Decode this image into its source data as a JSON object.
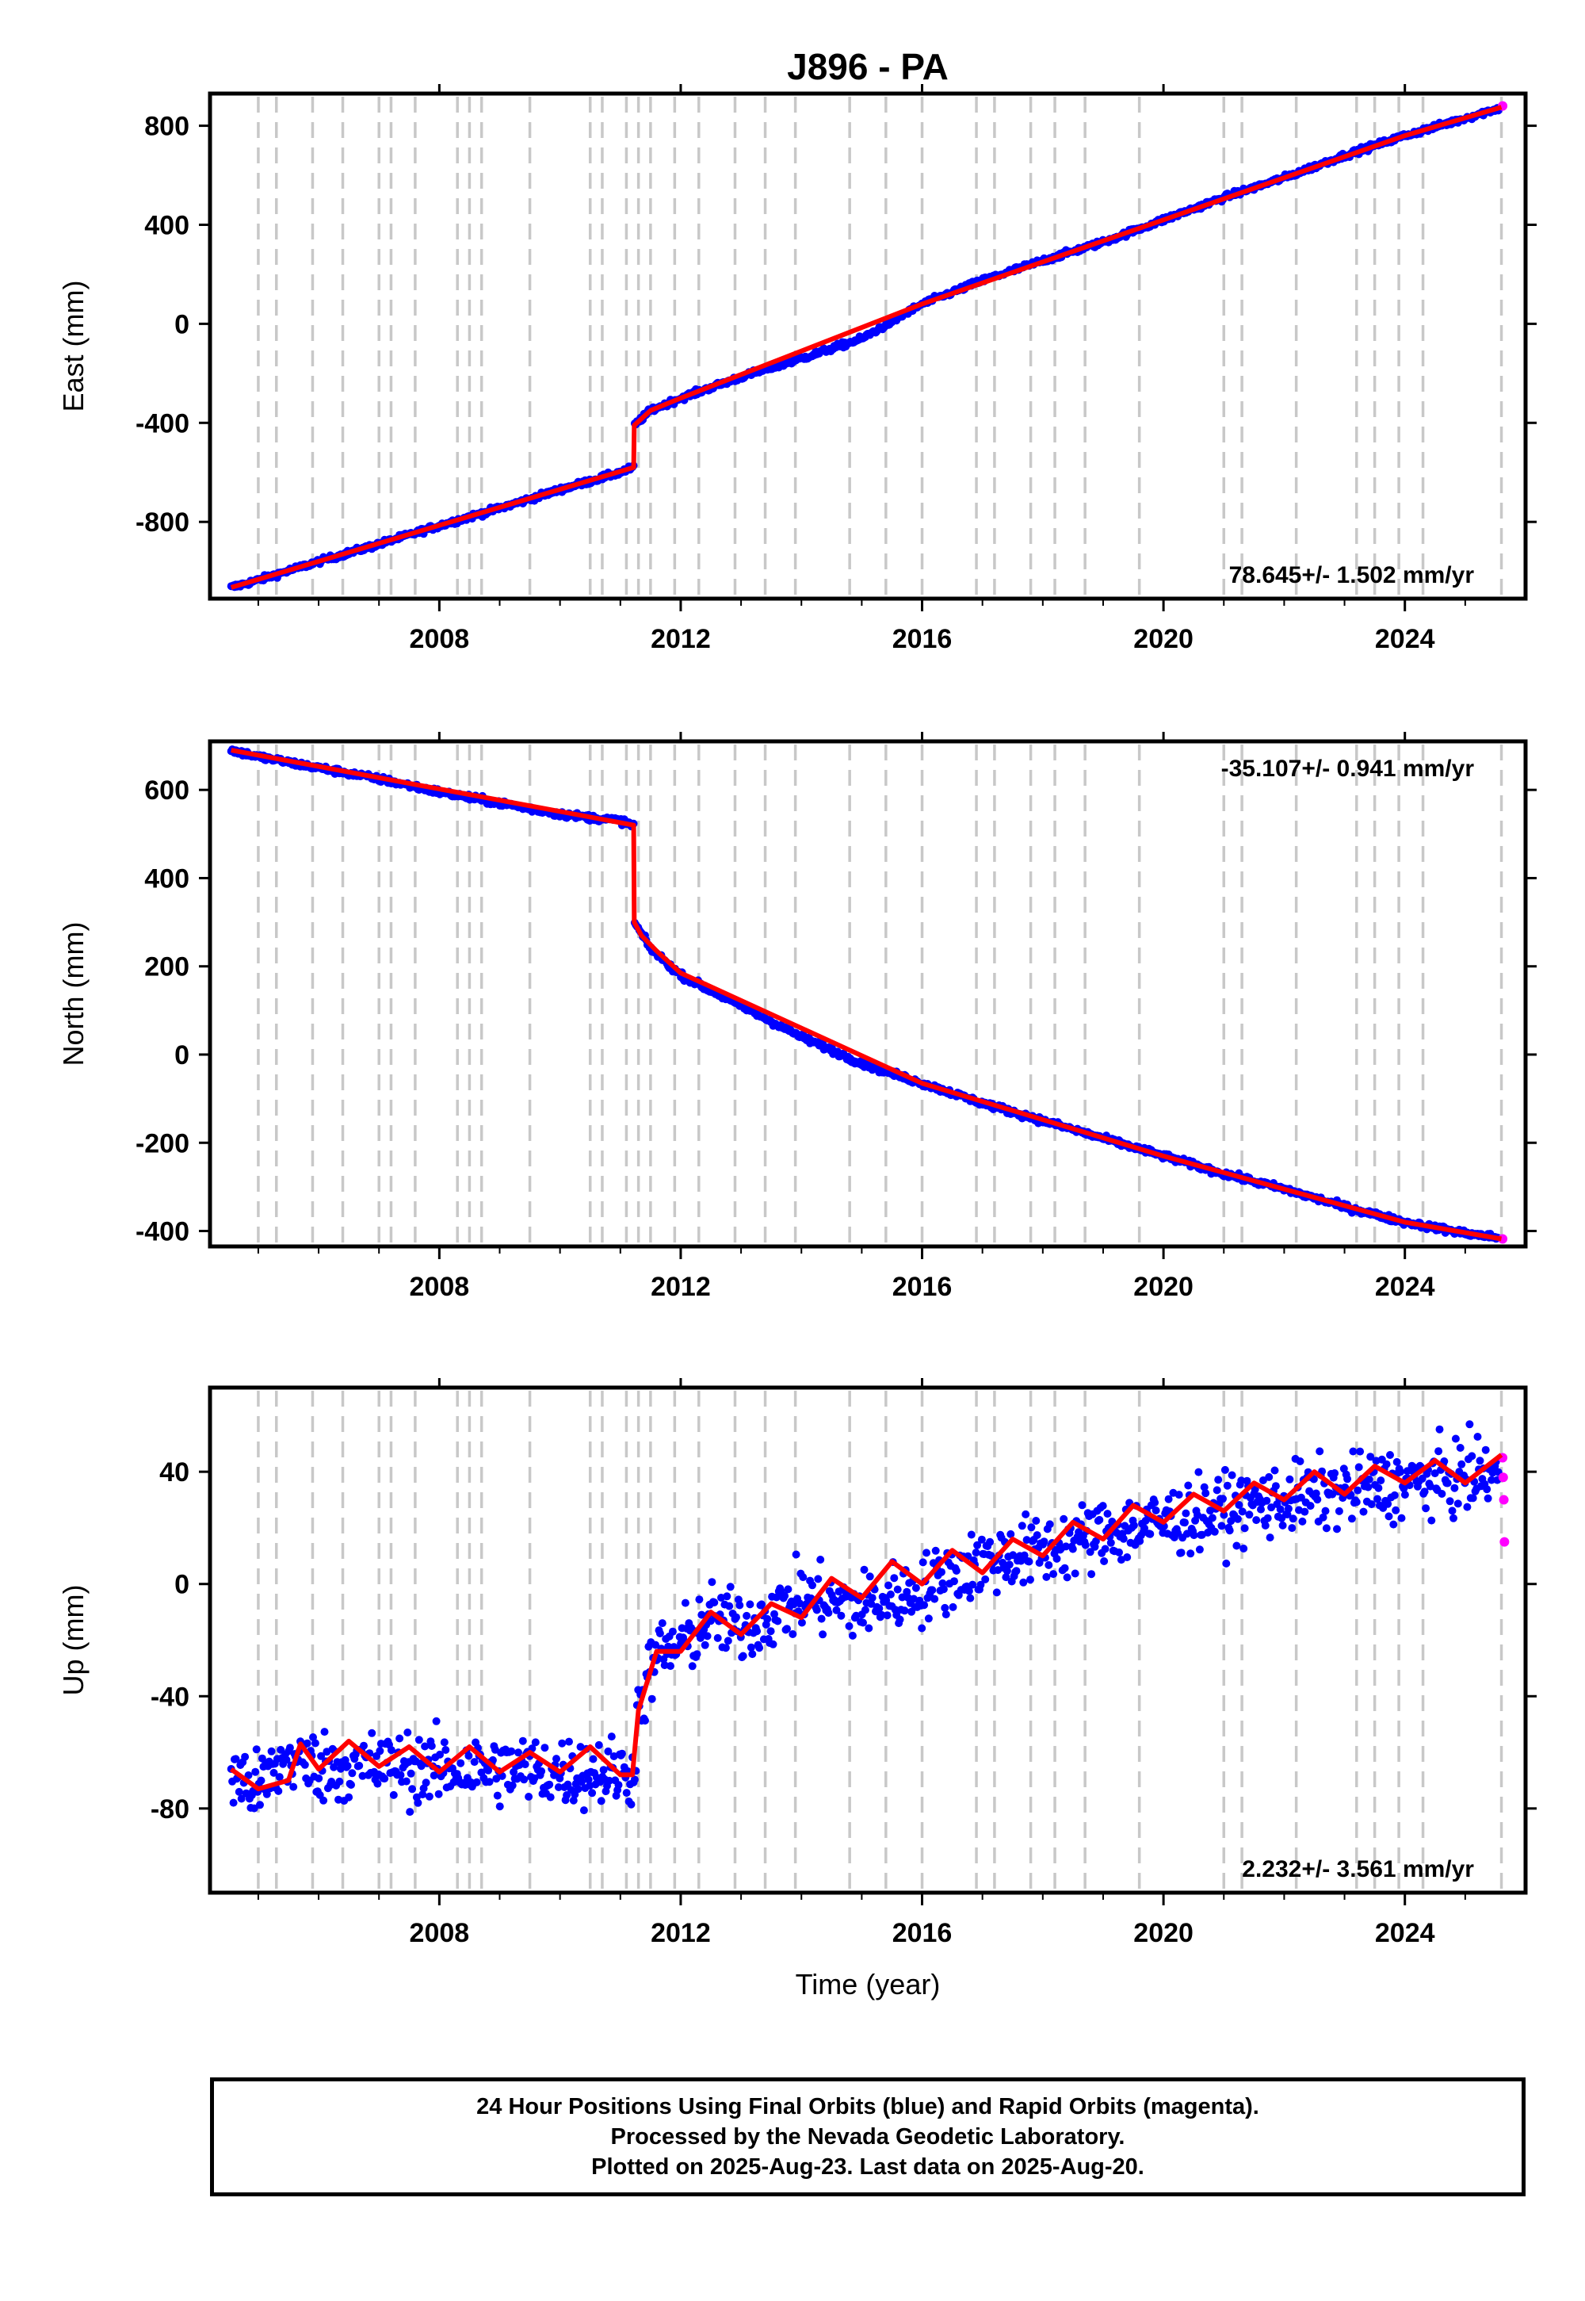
{
  "chart_data": [
    {
      "type": "scatter",
      "title": "J896 - PA",
      "ylabel": "East (mm)",
      "xlabel": "",
      "xlim": [
        2004.2,
        2026.0
      ],
      "ylim": [
        -1110,
        930
      ],
      "xticks": [
        2008,
        2012,
        2016,
        2020,
        2024
      ],
      "yticks": [
        -800,
        -400,
        0,
        400,
        800
      ],
      "rate_label": "78.645+/- 1.502 mm/yr",
      "rate_position": "bottom-right",
      "grid": false,
      "equipment_change_lines": [
        2005.0,
        2005.3,
        2005.9,
        2006.4,
        2007.0,
        2007.2,
        2007.6,
        2008.3,
        2008.5,
        2008.7,
        2009.5,
        2010.5,
        2010.7,
        2011.1,
        2011.3,
        2011.5,
        2011.9,
        2012.3,
        2012.9,
        2013.4,
        2013.9,
        2014.8,
        2015.4,
        2016.0,
        2016.9,
        2017.2,
        2017.8,
        2018.2,
        2018.7,
        2019.6,
        2021.0,
        2021.3,
        2022.2,
        2023.2,
        2023.5,
        2023.9,
        2024.3,
        2025.6
      ],
      "series": [
        {
          "name": "Final Orbits",
          "color": "#0000ff",
          "x": [
            2004.55,
            2005.0,
            2006.0,
            2007.0,
            2008.0,
            2009.0,
            2010.0,
            2011.0,
            2011.22,
            2011.23,
            2011.5,
            2012.0,
            2013.0,
            2014.0,
            2015.0,
            2016.0,
            2017.0,
            2018.0,
            2019.0,
            2020.0,
            2021.0,
            2022.0,
            2023.0,
            2024.0,
            2025.0,
            2025.55
          ],
          "values": [
            -1065,
            -1035,
            -960,
            -890,
            -815,
            -745,
            -670,
            -600,
            -580,
            -410,
            -350,
            -300,
            -215,
            -140,
            -60,
            80,
            175,
            255,
            330,
            420,
            510,
            590,
            680,
            760,
            830,
            870
          ]
        },
        {
          "name": "Rapid Orbits",
          "color": "#ff00ff",
          "x": [
            2025.62
          ],
          "values": [
            880
          ]
        },
        {
          "name": "Model",
          "color": "#ff0000",
          "x": [
            2004.55,
            2011.22,
            2011.23,
            2011.5,
            2012.0,
            2016.0,
            2020.0,
            2024.0,
            2025.6
          ],
          "values": [
            -1065,
            -580,
            -410,
            -350,
            -300,
            80,
            420,
            760,
            875
          ]
        }
      ]
    },
    {
      "type": "scatter",
      "title": "",
      "ylabel": "North (mm)",
      "xlabel": "",
      "xlim": [
        2004.2,
        2026.0
      ],
      "ylim": [
        -435,
        710
      ],
      "xticks": [
        2008,
        2012,
        2016,
        2020,
        2024
      ],
      "yticks": [
        -400,
        -200,
        0,
        200,
        400,
        600
      ],
      "rate_label": "-35.107+/- 0.941 mm/yr",
      "rate_position": "top-right",
      "grid": false,
      "series": [
        {
          "name": "Final Orbits",
          "color": "#0000ff",
          "x": [
            2004.55,
            2005.0,
            2006.0,
            2007.0,
            2008.0,
            2009.0,
            2010.0,
            2011.0,
            2011.22,
            2011.23,
            2011.5,
            2012.0,
            2013.0,
            2014.0,
            2015.0,
            2016.0,
            2017.0,
            2018.0,
            2019.0,
            2020.0,
            2021.0,
            2022.0,
            2023.0,
            2024.0,
            2025.0,
            2025.55
          ],
          "values": [
            690,
            675,
            650,
            625,
            595,
            570,
            545,
            530,
            520,
            300,
            240,
            180,
            110,
            40,
            -20,
            -65,
            -110,
            -150,
            -190,
            -230,
            -270,
            -305,
            -345,
            -380,
            -405,
            -415
          ]
        },
        {
          "name": "Rapid Orbits",
          "color": "#ff00ff",
          "x": [
            2025.62
          ],
          "values": [
            -418
          ]
        },
        {
          "name": "Model",
          "color": "#ff0000",
          "x": [
            2004.55,
            2011.22,
            2011.23,
            2011.35,
            2011.6,
            2012.0,
            2016.0,
            2020.0,
            2024.0,
            2025.6
          ],
          "values": [
            690,
            520,
            300,
            270,
            235,
            185,
            -65,
            -230,
            -380,
            -418
          ]
        }
      ]
    },
    {
      "type": "scatter",
      "title": "",
      "ylabel": "Up (mm)",
      "xlabel": "Time (year)",
      "xlim": [
        2004.2,
        2026.0
      ],
      "ylim": [
        -110,
        70
      ],
      "xticks": [
        2008,
        2012,
        2016,
        2020,
        2024
      ],
      "yticks": [
        -80,
        -40,
        0,
        40
      ],
      "rate_label": "2.232+/- 3.561 mm/yr",
      "rate_position": "bottom-right",
      "grid": false,
      "series": [
        {
          "name": "Final Orbits",
          "color": "#0000ff",
          "x": [
            2004.55,
            2005.0,
            2005.5,
            2006.0,
            2007.0,
            2008.0,
            2009.0,
            2010.0,
            2011.0,
            2011.2,
            2011.3,
            2011.6,
            2012.0,
            2012.5,
            2013.0,
            2014.0,
            2015.0,
            2016.0,
            2017.0,
            2018.0,
            2019.0,
            2020.0,
            2021.0,
            2022.0,
            2023.0,
            2024.0,
            2025.0,
            2025.55
          ],
          "values": [
            -68,
            -73,
            -62,
            -65,
            -65,
            -66,
            -66,
            -67,
            -67,
            -68,
            -45,
            -25,
            -22,
            -12,
            -16,
            -5,
            -8,
            -2,
            8,
            12,
            18,
            22,
            26,
            30,
            33,
            36,
            38,
            40
          ]
        },
        {
          "name": "Rapid Orbits",
          "color": "#ff00ff",
          "x": [
            2025.62,
            2025.63,
            2025.64,
            2025.65
          ],
          "values": [
            45,
            38,
            30,
            15
          ]
        },
        {
          "name": "Model",
          "color": "#ff0000",
          "x": [
            2004.55,
            2005.0,
            2005.5,
            2005.7,
            2006.0,
            2006.5,
            2007.0,
            2007.5,
            2008.0,
            2008.5,
            2009.0,
            2009.5,
            2010.0,
            2010.5,
            2011.0,
            2011.2,
            2011.3,
            2011.6,
            2012.0,
            2012.5,
            2013.0,
            2013.5,
            2014.0,
            2014.5,
            2015.0,
            2015.5,
            2016.0,
            2016.5,
            2017.0,
            2017.5,
            2018.0,
            2018.5,
            2019.0,
            2019.5,
            2020.0,
            2020.5,
            2021.0,
            2021.5,
            2022.0,
            2022.5,
            2023.0,
            2023.5,
            2024.0,
            2024.5,
            2025.0,
            2025.6
          ],
          "values": [
            -66,
            -73,
            -70,
            -57,
            -66,
            -56,
            -65,
            -58,
            -67,
            -58,
            -67,
            -60,
            -67,
            -58,
            -68,
            -68,
            -45,
            -24,
            -24,
            -10,
            -18,
            -7,
            -12,
            2,
            -5,
            8,
            0,
            12,
            4,
            16,
            10,
            22,
            16,
            28,
            22,
            32,
            26,
            36,
            30,
            40,
            32,
            42,
            36,
            44,
            36,
            46
          ]
        }
      ]
    }
  ],
  "footer": {
    "line1": "24 Hour Positions Using Final Orbits (blue) and Rapid Orbits (magenta).",
    "line2": "Processed by the Nevada Geodetic Laboratory.",
    "line3": "Plotted on 2025-Aug-23. Last data on 2025-Aug-20."
  }
}
